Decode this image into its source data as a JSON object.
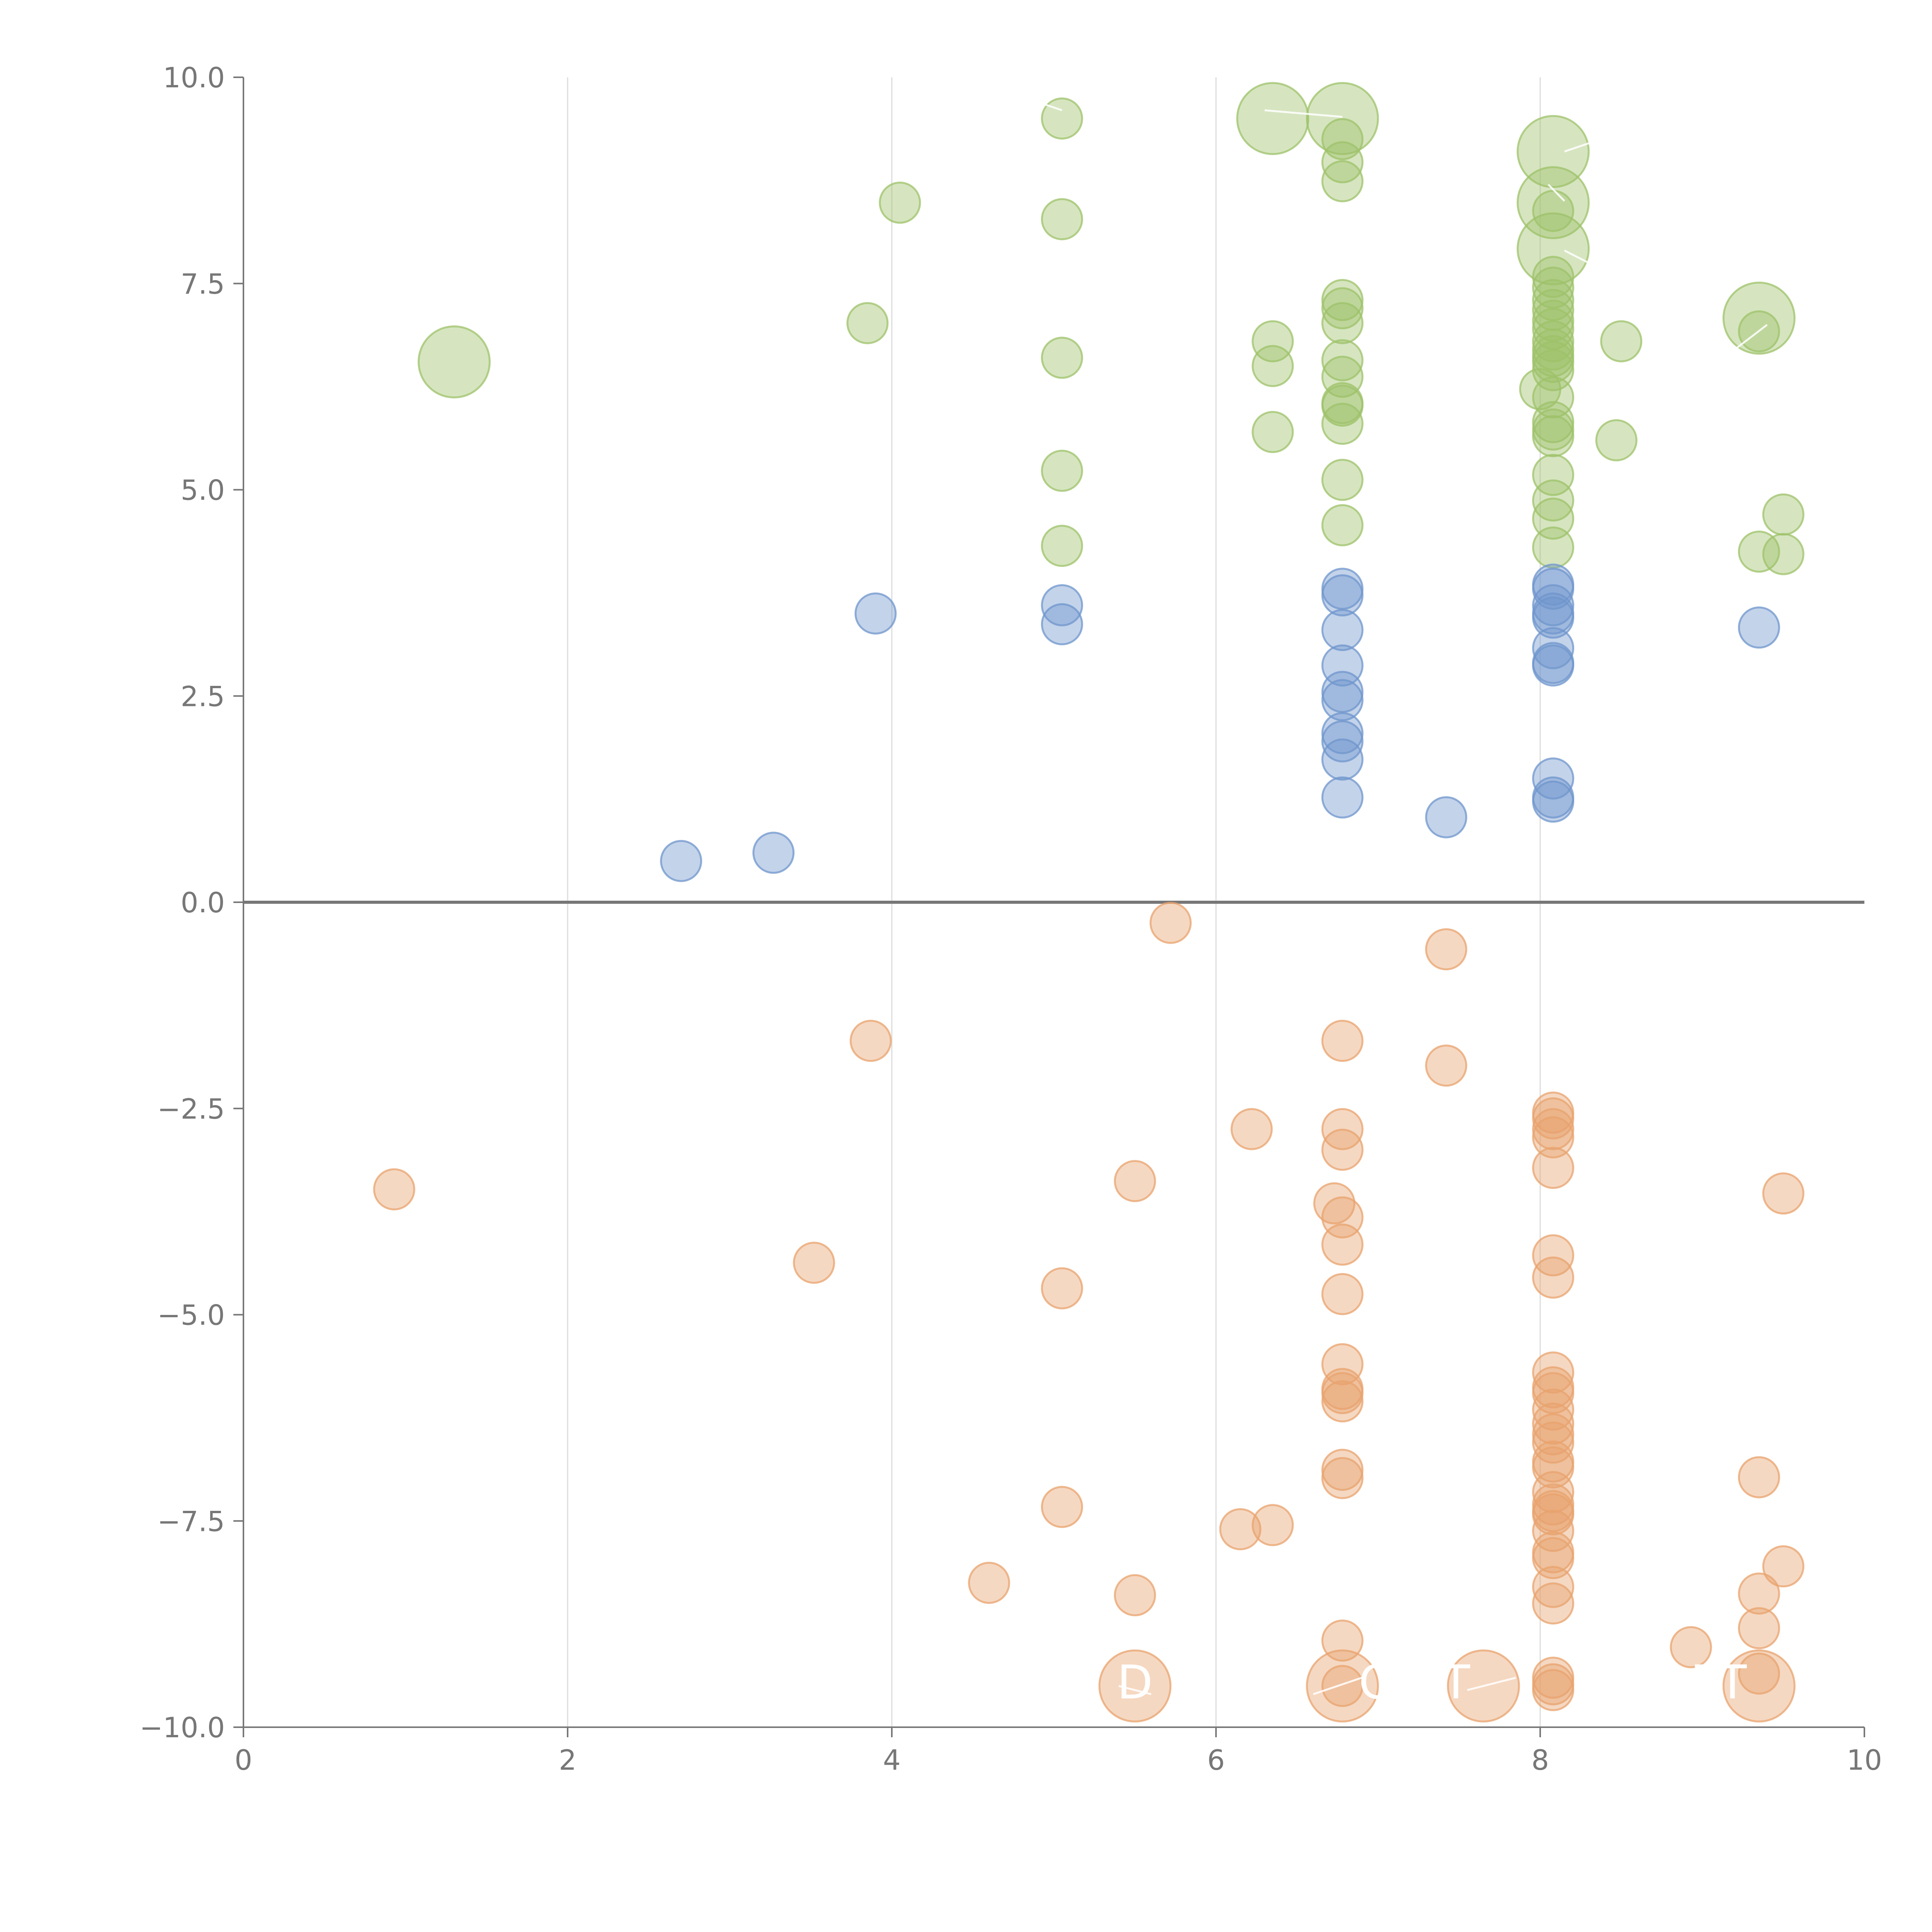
{
  "chart_data": {
    "type": "scatter",
    "title": "",
    "xlabel": "",
    "ylabel": "",
    "xlim": [
      0,
      10
    ],
    "ylim": [
      -10,
      10
    ],
    "x_ticks": [
      0,
      2,
      4,
      6,
      8,
      10
    ],
    "y_ticks": [
      10.0,
      7.5,
      5.0,
      2.5,
      0.0,
      -2.5,
      -5.0,
      -7.5,
      -10.0
    ],
    "x_tick_labels": [
      "0",
      "2",
      "4",
      "6",
      "8",
      "10"
    ],
    "y_tick_labels": [
      "10.0",
      "7.5",
      "5.0",
      "2.5",
      "0.0",
      "−2.5",
      "−5.0",
      "−7.5",
      "−10.0"
    ],
    "grid": "vertical",
    "zero_line": true,
    "bubble_size_levels": {
      "small": 1,
      "large": 3
    },
    "series": [
      {
        "color": "#9DC26A",
        "points": [
          [
            5.05,
            9.5,
            1
          ],
          [
            4.05,
            8.48,
            1
          ],
          [
            5.05,
            8.28,
            1
          ],
          [
            3.85,
            7.02,
            1
          ],
          [
            5.05,
            6.6,
            1
          ],
          [
            5.05,
            5.23,
            1
          ],
          [
            5.05,
            4.32,
            1
          ],
          [
            1.3,
            6.55,
            3
          ],
          [
            6.35,
            9.5,
            3
          ],
          [
            6.78,
            9.5,
            3
          ],
          [
            6.78,
            9.25,
            1
          ],
          [
            6.78,
            8.97,
            1
          ],
          [
            6.78,
            8.74,
            1
          ],
          [
            6.78,
            7.3,
            1
          ],
          [
            6.78,
            7.2,
            1
          ],
          [
            6.78,
            7.02,
            1
          ],
          [
            6.78,
            6.57,
            1
          ],
          [
            6.78,
            6.37,
            1
          ],
          [
            6.78,
            6.05,
            1
          ],
          [
            6.78,
            6.02,
            1
          ],
          [
            6.78,
            5.8,
            1
          ],
          [
            6.78,
            5.12,
            1
          ],
          [
            6.78,
            4.57,
            1
          ],
          [
            6.35,
            6.8,
            1
          ],
          [
            6.35,
            6.5,
            1
          ],
          [
            6.35,
            5.7,
            1
          ],
          [
            8.08,
            9.1,
            3
          ],
          [
            8.08,
            8.48,
            3
          ],
          [
            8.08,
            7.92,
            3
          ],
          [
            8.08,
            8.38,
            1
          ],
          [
            8.08,
            7.58,
            1
          ],
          [
            8.08,
            7.45,
            1
          ],
          [
            8.08,
            7.3,
            1
          ],
          [
            8.08,
            7.18,
            1
          ],
          [
            8.08,
            7.05,
            1
          ],
          [
            8.08,
            6.95,
            1
          ],
          [
            8.08,
            6.8,
            1
          ],
          [
            8.08,
            6.7,
            1
          ],
          [
            8.08,
            6.62,
            1
          ],
          [
            8.08,
            6.55,
            1
          ],
          [
            8.08,
            6.45,
            1
          ],
          [
            8.0,
            6.22,
            1
          ],
          [
            8.08,
            6.12,
            1
          ],
          [
            8.08,
            5.82,
            1
          ],
          [
            8.08,
            5.73,
            1
          ],
          [
            8.08,
            5.65,
            1
          ],
          [
            8.08,
            5.18,
            1
          ],
          [
            8.08,
            4.87,
            1
          ],
          [
            8.08,
            4.65,
            1
          ],
          [
            8.08,
            4.3,
            1
          ],
          [
            8.5,
            6.8,
            1
          ],
          [
            8.47,
            5.6,
            1
          ],
          [
            9.35,
            7.08,
            3
          ],
          [
            9.35,
            6.92,
            1
          ],
          [
            9.5,
            4.7,
            1
          ],
          [
            9.35,
            4.25,
            1
          ],
          [
            9.5,
            4.22,
            1
          ]
        ]
      },
      {
        "color": "#6F95CC",
        "points": [
          [
            2.7,
            0.5,
            1
          ],
          [
            3.27,
            0.6,
            1
          ],
          [
            3.9,
            3.5,
            1
          ],
          [
            5.05,
            3.6,
            1
          ],
          [
            5.05,
            3.37,
            1
          ],
          [
            6.78,
            3.8,
            1
          ],
          [
            6.78,
            3.72,
            1
          ],
          [
            6.78,
            3.3,
            1
          ],
          [
            6.78,
            2.87,
            1
          ],
          [
            6.78,
            2.55,
            1
          ],
          [
            6.78,
            2.45,
            1
          ],
          [
            6.78,
            2.05,
            1
          ],
          [
            6.78,
            1.95,
            1
          ],
          [
            6.78,
            1.73,
            1
          ],
          [
            6.78,
            1.27,
            1
          ],
          [
            7.42,
            1.03,
            1
          ],
          [
            8.08,
            3.85,
            1
          ],
          [
            8.08,
            3.8,
            1
          ],
          [
            8.08,
            3.6,
            1
          ],
          [
            8.08,
            3.5,
            1
          ],
          [
            8.08,
            3.45,
            1
          ],
          [
            8.08,
            3.08,
            1
          ],
          [
            8.08,
            2.9,
            1
          ],
          [
            8.08,
            2.87,
            1
          ],
          [
            8.08,
            1.5,
            1
          ],
          [
            8.08,
            1.27,
            1
          ],
          [
            8.08,
            1.22,
            1
          ],
          [
            9.35,
            3.33,
            1
          ]
        ]
      },
      {
        "color": "#E8A36E",
        "points": [
          [
            0.93,
            -3.48,
            1
          ],
          [
            3.52,
            -4.37,
            1
          ],
          [
            3.87,
            -1.68,
            1
          ],
          [
            4.6,
            -8.25,
            1
          ],
          [
            5.05,
            -4.68,
            1
          ],
          [
            5.05,
            -7.33,
            1
          ],
          [
            5.5,
            -3.38,
            1
          ],
          [
            5.5,
            -8.4,
            1
          ],
          [
            5.72,
            -0.25,
            1
          ],
          [
            6.15,
            -7.6,
            1
          ],
          [
            6.22,
            -2.75,
            1
          ],
          [
            6.35,
            -7.55,
            1
          ],
          [
            5.5,
            -9.5,
            3
          ],
          [
            6.78,
            -9.5,
            3
          ],
          [
            7.65,
            -9.5,
            3
          ],
          [
            9.35,
            -9.5,
            3
          ],
          [
            6.78,
            -1.68,
            1
          ],
          [
            6.78,
            -2.75,
            1
          ],
          [
            6.78,
            -3.0,
            1
          ],
          [
            6.73,
            -3.65,
            1
          ],
          [
            6.78,
            -3.82,
            1
          ],
          [
            6.78,
            -4.15,
            1
          ],
          [
            6.78,
            -4.75,
            1
          ],
          [
            6.78,
            -5.6,
            1
          ],
          [
            6.78,
            -5.9,
            1
          ],
          [
            6.78,
            -5.95,
            1
          ],
          [
            6.78,
            -6.05,
            1
          ],
          [
            6.78,
            -6.88,
            1
          ],
          [
            6.78,
            -6.98,
            1
          ],
          [
            6.78,
            -8.95,
            1
          ],
          [
            6.78,
            -9.5,
            1
          ],
          [
            7.42,
            -0.57,
            1
          ],
          [
            7.42,
            -1.98,
            1
          ],
          [
            8.08,
            -2.55,
            1
          ],
          [
            8.08,
            -2.62,
            1
          ],
          [
            8.08,
            -2.75,
            1
          ],
          [
            8.08,
            -2.85,
            1
          ],
          [
            8.08,
            -3.22,
            1
          ],
          [
            8.08,
            -4.28,
            1
          ],
          [
            8.08,
            -4.55,
            1
          ],
          [
            8.08,
            -5.7,
            1
          ],
          [
            8.08,
            -5.88,
            1
          ],
          [
            8.08,
            -5.95,
            1
          ],
          [
            8.08,
            -6.15,
            1
          ],
          [
            8.08,
            -6.32,
            1
          ],
          [
            8.08,
            -6.45,
            1
          ],
          [
            8.08,
            -6.55,
            1
          ],
          [
            8.08,
            -6.78,
            1
          ],
          [
            8.08,
            -6.85,
            1
          ],
          [
            8.08,
            -7.15,
            1
          ],
          [
            8.08,
            -7.3,
            1
          ],
          [
            8.08,
            -7.38,
            1
          ],
          [
            8.08,
            -7.42,
            1
          ],
          [
            8.08,
            -7.62,
            1
          ],
          [
            8.08,
            -7.88,
            1
          ],
          [
            8.08,
            -7.95,
            1
          ],
          [
            8.08,
            -8.3,
            1
          ],
          [
            8.08,
            -8.5,
            1
          ],
          [
            8.08,
            -9.4,
            1
          ],
          [
            8.08,
            -9.48,
            1
          ],
          [
            8.08,
            -9.55,
            1
          ],
          [
            8.93,
            -9.03,
            1
          ],
          [
            9.35,
            -6.97,
            1
          ],
          [
            9.5,
            -8.05,
            1
          ],
          [
            9.35,
            -8.38,
            1
          ],
          [
            9.35,
            -8.8,
            1
          ],
          [
            9.35,
            -9.35,
            1
          ],
          [
            9.5,
            -3.53,
            1
          ]
        ]
      }
    ],
    "leader_lines": [
      {
        "from": [
          6.3,
          9.6
        ],
        "to": [
          6.78,
          9.52
        ]
      },
      {
        "from": [
          8.15,
          9.1
        ],
        "to": [
          8.3,
          9.2
        ]
      },
      {
        "from": [
          8.15,
          8.5
        ],
        "to": [
          8.05,
          8.7
        ]
      },
      {
        "from": [
          8.15,
          7.9
        ],
        "to": [
          8.35,
          7.7
        ]
      },
      {
        "from": [
          9.2,
          6.7
        ],
        "to": [
          9.4,
          7.0
        ]
      },
      {
        "from": [
          5.05,
          9.6
        ],
        "to": [
          4.6,
          9.9
        ]
      },
      {
        "from": [
          5.4,
          -9.5
        ],
        "to": [
          5.6,
          -9.6
        ]
      },
      {
        "from": [
          6.6,
          -9.6
        ],
        "to": [
          6.9,
          -9.4
        ]
      },
      {
        "from": [
          7.55,
          -9.55
        ],
        "to": [
          7.85,
          -9.4
        ]
      }
    ],
    "overlay_labels": [
      {
        "text": "D",
        "x": 5.5,
        "y": -9.65
      },
      {
        "text": "C",
        "x": 6.98,
        "y": -9.65
      },
      {
        "text": "T",
        "x": 7.48,
        "y": -9.65
      },
      {
        "text": "PT",
        "x": 9.1,
        "y": -9.65
      }
    ]
  }
}
